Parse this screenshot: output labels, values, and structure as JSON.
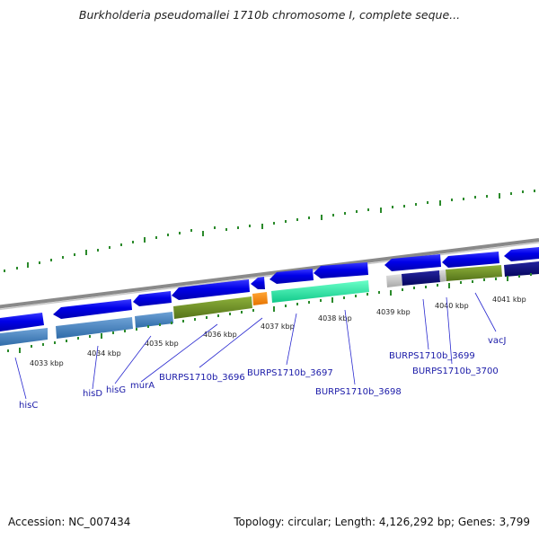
{
  "title": "Burkholderia pseudomallei 1710b chromosome I, complete seque...",
  "kbp_ticks": [
    "4033 kbp",
    "4034 kbp",
    "4035 kbp",
    "4036 kbp",
    "4037 kbp",
    "4038 kbp",
    "4039 kbp",
    "4040 kbp",
    "4041 kbp"
  ],
  "gene_labels": [
    "hisC",
    "hisD",
    "hisG",
    "murA",
    "BURPS1710b_3696",
    "BURPS1710b_3697",
    "BURPS1710b_3698",
    "BURPS1710b_3699",
    "BURPS1710b_3700",
    "vacJ"
  ],
  "footer": {
    "accession": "Accession: NC_007434",
    "topology": "Topology: circular; Length: 4,126,292 bp; Genes: 3,799"
  },
  "colors": {
    "cds_forward": "#0000dd",
    "steel": "#4a86c0",
    "olive": "#6a8a1e",
    "orange": "#ff8800",
    "aqua": "#22dd99",
    "navy": "#0a0a80",
    "gray": "#c0c0c0",
    "tick_green": "#2b8a2b",
    "backbone": "#888888"
  }
}
